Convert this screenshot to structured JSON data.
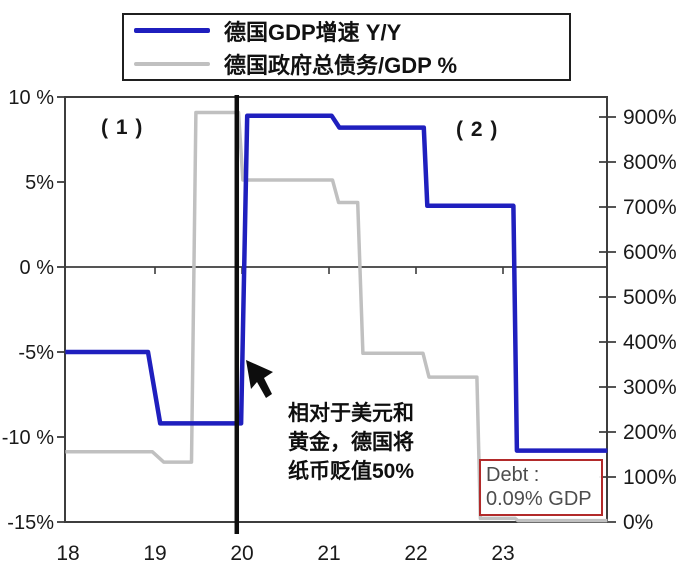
{
  "legend": {
    "items": [
      {
        "label": "德国GDP增速 Y/Y",
        "color": "#1f1fbe"
      },
      {
        "label": "德国政府总债务/GDP %",
        "color": "#c0c0c0"
      }
    ]
  },
  "annotations": {
    "phase1": "( 1 )",
    "phase2": "( 2 )",
    "devaluation_line1": "相对于美元和",
    "devaluation_line2": "黄金，德国将",
    "devaluation_line3": "纸币贬值50%",
    "debt_box_line1": "Debt :",
    "debt_box_line2": "0.09% GDP"
  },
  "colors": {
    "gdp_line": "#1f1fbe",
    "debt_line": "#c0c0c0",
    "axis": "#3d3d3d",
    "event_line": "#0d0d0d",
    "debt_box_border": "#b22a2a",
    "debt_box_text": "#4d4d4d"
  },
  "chart_data": {
    "type": "line",
    "title": "",
    "legend_position": "top-left",
    "x_axis": {
      "tick_labels": [
        "18",
        "19",
        "20",
        "21",
        "22",
        "23"
      ],
      "tick_years": [
        18,
        19,
        20,
        21,
        22,
        23
      ],
      "range": [
        17.97,
        24.2
      ],
      "zero_line_tick_years": [
        19,
        20,
        21,
        22,
        23
      ]
    },
    "y_axis_left": {
      "name": "德国GDP增速 Y/Y",
      "unit": "%",
      "tick_labels": [
        "10 %",
        "5%",
        "0 %",
        "-5%",
        "-10 %",
        "-15%"
      ],
      "tick_values": [
        10,
        5,
        0,
        -5,
        -10,
        -15
      ],
      "range": [
        -15,
        10
      ]
    },
    "y_axis_right": {
      "name": "德国政府总债务/GDP %",
      "unit": "%",
      "tick_labels": [
        "900%",
        "800%",
        "700%",
        "600%",
        "500%",
        "400%",
        "300%",
        "200%",
        "100%",
        "0%"
      ],
      "tick_values": [
        900,
        800,
        700,
        600,
        500,
        400,
        300,
        200,
        100,
        0
      ],
      "range": [
        0,
        900
      ]
    },
    "event_line_year": 19.94,
    "series": [
      {
        "id": "gdp_growth",
        "name": "德国GDP增速 Y/Y",
        "axis": "left",
        "color": "#1f1fbe",
        "points": [
          [
            17.97,
            -5
          ],
          [
            18.92,
            -5
          ],
          [
            19.06,
            -9.2
          ],
          [
            19.99,
            -9.2
          ],
          [
            20.06,
            8.9
          ],
          [
            21.03,
            8.9
          ],
          [
            21.12,
            8.2
          ],
          [
            22.09,
            8.2
          ],
          [
            22.13,
            3.6
          ],
          [
            23.12,
            3.6
          ],
          [
            23.16,
            -10.8
          ],
          [
            24.2,
            -10.8
          ]
        ]
      },
      {
        "id": "debt_gdp",
        "name": "德国政府总债务/GDP %",
        "axis": "right",
        "color": "#c0c0c0",
        "points": [
          [
            17.97,
            156
          ],
          [
            18.97,
            156
          ],
          [
            19.1,
            133
          ],
          [
            19.42,
            133
          ],
          [
            19.47,
            910
          ],
          [
            19.96,
            910
          ],
          [
            20.01,
            760
          ],
          [
            21.04,
            760
          ],
          [
            21.11,
            710
          ],
          [
            21.33,
            710
          ],
          [
            21.39,
            375
          ],
          [
            22.08,
            375
          ],
          [
            22.15,
            322
          ],
          [
            22.7,
            322
          ],
          [
            22.74,
            8
          ],
          [
            23.14,
            8
          ],
          [
            23.17,
            3
          ],
          [
            24.2,
            3
          ]
        ]
      }
    ]
  }
}
